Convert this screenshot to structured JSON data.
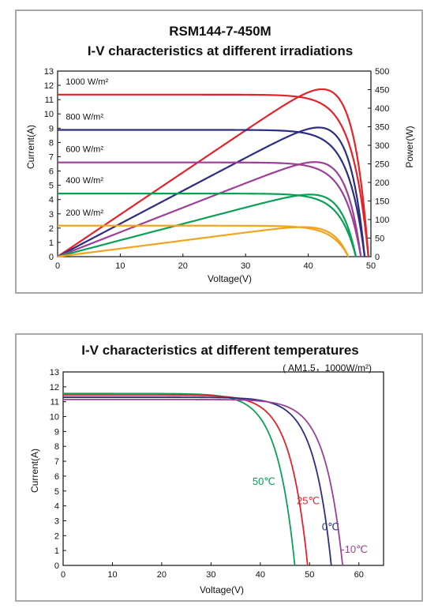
{
  "chart_data": [
    {
      "type": "line",
      "title": "RSM144-7-450M",
      "subtitle": "I-V characteristics at different irradiations",
      "xlabel": "Voltage(V)",
      "ylabel": "Current(A)",
      "y2label": "Power(W)",
      "xlim": [
        0,
        50
      ],
      "ylim": [
        0,
        13
      ],
      "y2lim": [
        0,
        500
      ],
      "xticks": [
        "0",
        "10",
        "20",
        "30",
        "40",
        "50"
      ],
      "yticks": [
        "0",
        "1",
        "2",
        "3",
        "4",
        "5",
        "6",
        "7",
        "8",
        "9",
        "10",
        "11",
        "12",
        "13"
      ],
      "y2ticks": [
        "0",
        "50",
        "100",
        "150",
        "200",
        "250",
        "300",
        "350",
        "400",
        "450",
        "500"
      ],
      "grid": false,
      "series": [
        {
          "name": "1000 W/m²",
          "color": "#e2232a",
          "isc": 11.35,
          "voc": 49.6,
          "vmp": 41.0,
          "imp": 10.98,
          "pmax": 450
        },
        {
          "name": "800 W/m²",
          "color": "#2b2d84",
          "isc": 8.88,
          "voc": 49.0,
          "vmp": 40.3,
          "imp": 8.43,
          "pmax": 340
        },
        {
          "name": "600 W/m²",
          "color": "#9c3f97",
          "isc": 6.6,
          "voc": 48.4,
          "vmp": 40.0,
          "imp": 6.36,
          "pmax": 254
        },
        {
          "name": "400 W/m²",
          "color": "#0aa056",
          "isc": 4.42,
          "voc": 47.6,
          "vmp": 39.7,
          "imp": 4.21,
          "pmax": 167
        },
        {
          "name": "200 W/m²",
          "color": "#f0a41f",
          "isc": 2.17,
          "voc": 46.4,
          "vmp": 38.6,
          "imp": 2.05,
          "pmax": 79
        }
      ]
    },
    {
      "type": "line",
      "title": "I-V characteristics at different temperatures",
      "subtitle": "( AM1.5，1000W/m²)",
      "xlabel": "Voltage(V)",
      "ylabel": "Current(A)",
      "xlim": [
        0,
        65
      ],
      "ylim": [
        0,
        13
      ],
      "xticks": [
        "0",
        "10",
        "20",
        "30",
        "40",
        "50",
        "60"
      ],
      "yticks": [
        "0",
        "1",
        "2",
        "3",
        "4",
        "5",
        "6",
        "7",
        "8",
        "9",
        "10",
        "11",
        "12",
        "13"
      ],
      "grid": false,
      "series": [
        {
          "name": "50℃",
          "color": "#0aa056",
          "isc": 11.55,
          "voc": 47.0
        },
        {
          "name": "25℃",
          "color": "#e2232a",
          "isc": 11.45,
          "voc": 49.6
        },
        {
          "name": "0℃",
          "color": "#2b2d84",
          "isc": 11.3,
          "voc": 54.4
        },
        {
          "name": "-10℃",
          "color": "#9c3f97",
          "isc": 11.15,
          "voc": 56.7
        }
      ]
    }
  ]
}
